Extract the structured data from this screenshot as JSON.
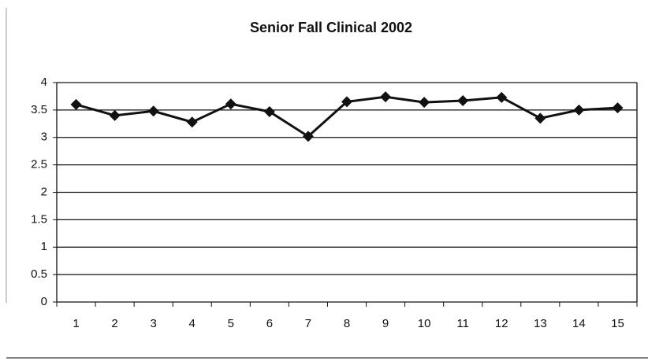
{
  "chart_data": {
    "type": "line",
    "title": "Senior Fall Clinical 2002",
    "categories": [
      "1",
      "2",
      "3",
      "4",
      "5",
      "6",
      "7",
      "8",
      "9",
      "10",
      "11",
      "12",
      "13",
      "14",
      "15"
    ],
    "values": [
      3.6,
      3.4,
      3.48,
      3.28,
      3.61,
      3.47,
      3.02,
      3.65,
      3.74,
      3.64,
      3.67,
      3.73,
      3.35,
      3.5,
      3.54
    ],
    "color": "#111111",
    "ylim": [
      0,
      4
    ],
    "yticks": [
      0,
      0.5,
      1,
      1.5,
      2,
      2.5,
      3,
      3.5,
      4
    ],
    "grid": true
  }
}
